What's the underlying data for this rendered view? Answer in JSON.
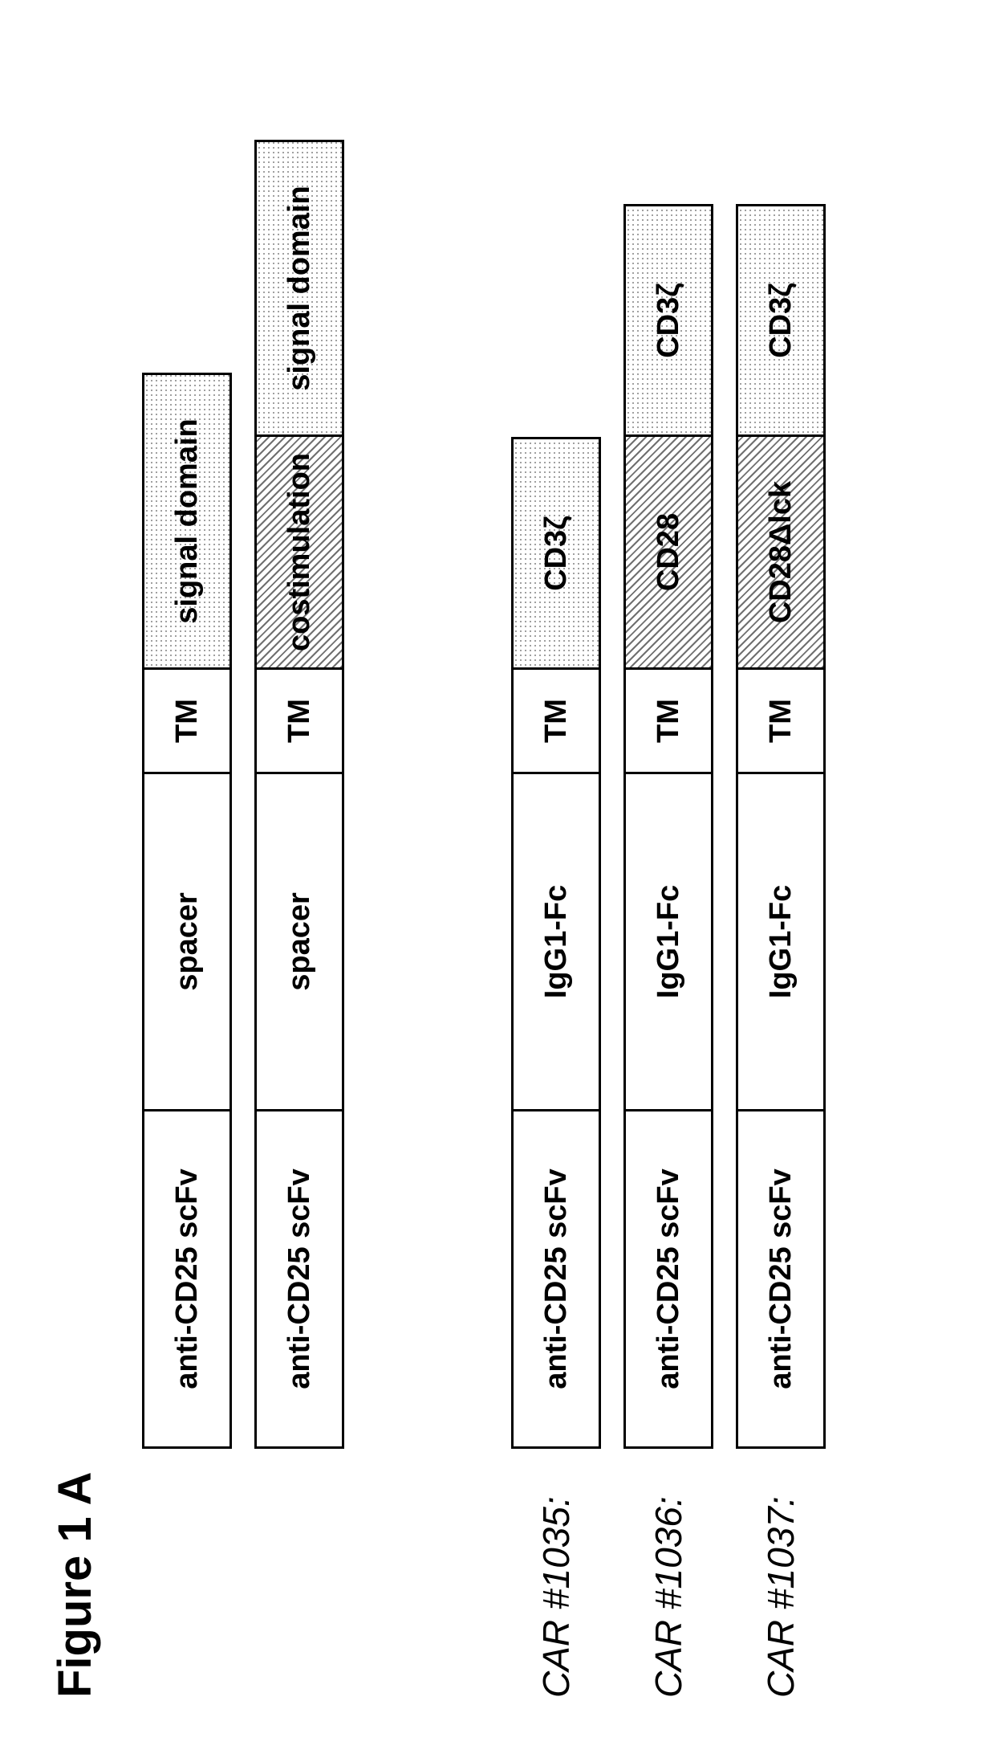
{
  "title": "Figure 1 A",
  "colors": {
    "border": "#000000",
    "text": "#000000",
    "plain_bg": "#ffffff",
    "dot_color": "#808080",
    "hatch_color": "#707070"
  },
  "segment_widths": {
    "scFv": 420,
    "spacer": 420,
    "TM": 130,
    "signal": 370,
    "costim": 290,
    "cd3z_short": 290,
    "cd3z_long": 370
  },
  "font_sizes": {
    "title": 58,
    "segment": 38,
    "label": 46
  },
  "generic": [
    {
      "label": "",
      "segments": [
        {
          "text": "anti-CD25 scFv",
          "fill": "plain",
          "w": "scFv"
        },
        {
          "text": "spacer",
          "fill": "plain",
          "w": "spacer"
        },
        {
          "text": "TM",
          "fill": "plain",
          "w": "TM"
        },
        {
          "text": "signal domain",
          "fill": "dots",
          "w": "signal"
        }
      ]
    },
    {
      "label": "",
      "segments": [
        {
          "text": "anti-CD25 scFv",
          "fill": "plain",
          "w": "scFv"
        },
        {
          "text": "spacer",
          "fill": "plain",
          "w": "spacer"
        },
        {
          "text": "TM",
          "fill": "plain",
          "w": "TM"
        },
        {
          "text": "costimulation",
          "fill": "hatch",
          "w": "costim"
        },
        {
          "text": "signal domain",
          "fill": "dots",
          "w": "signal"
        }
      ]
    }
  ],
  "cars": [
    {
      "label": "CAR #1035:",
      "segments": [
        {
          "text": "anti-CD25 scFv",
          "fill": "plain",
          "w": "scFv"
        },
        {
          "text": "IgG1-Fc",
          "fill": "plain",
          "w": "spacer"
        },
        {
          "text": "TM",
          "fill": "plain",
          "w": "TM"
        },
        {
          "text": "CD3ζ",
          "fill": "dots",
          "w": "cd3z_short"
        }
      ]
    },
    {
      "label": "CAR #1036:",
      "segments": [
        {
          "text": "anti-CD25 scFv",
          "fill": "plain",
          "w": "scFv"
        },
        {
          "text": "IgG1-Fc",
          "fill": "plain",
          "w": "spacer"
        },
        {
          "text": "TM",
          "fill": "plain",
          "w": "TM"
        },
        {
          "text": "CD28",
          "fill": "hatch",
          "w": "costim"
        },
        {
          "text": "CD3ζ",
          "fill": "dots",
          "w": "cd3z_short"
        }
      ]
    },
    {
      "label": "CAR #1037:",
      "segments": [
        {
          "text": "anti-CD25 scFv",
          "fill": "plain",
          "w": "scFv"
        },
        {
          "text": "IgG1-Fc",
          "fill": "plain",
          "w": "spacer"
        },
        {
          "text": "TM",
          "fill": "plain",
          "w": "TM"
        },
        {
          "text": "CD28Δlck",
          "fill": "hatch",
          "w": "costim"
        },
        {
          "text": "CD3ζ",
          "fill": "dots",
          "w": "cd3z_short"
        }
      ]
    }
  ]
}
